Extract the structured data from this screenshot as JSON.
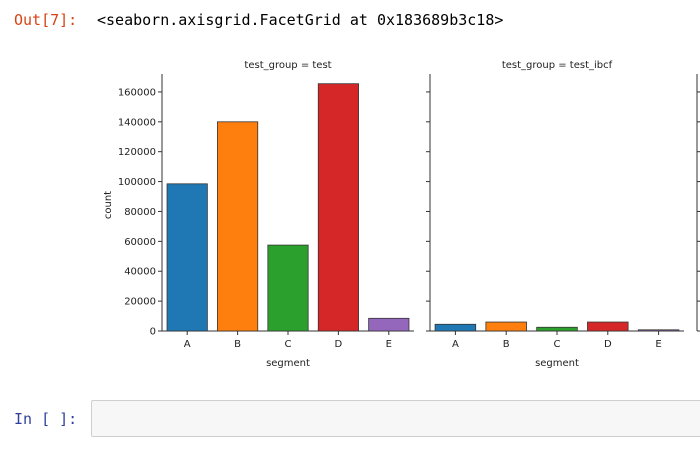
{
  "notebook": {
    "out_prompt": "Out[7]:",
    "out_text": "<seaborn.axisgrid.FacetGrid at 0x183689b3c18>",
    "in_prompt": "In [ ]:",
    "code_cell_value": ""
  },
  "chart_data": [
    {
      "type": "bar",
      "title": "test_group = test",
      "xlabel": "segment",
      "ylabel": "count",
      "categories": [
        "A",
        "B",
        "C",
        "D",
        "E"
      ],
      "values": [
        98500,
        140000,
        57500,
        165500,
        8500
      ],
      "colors": [
        "#1f77b4",
        "#ff7f0e",
        "#2ca02c",
        "#d62728",
        "#9467bd"
      ],
      "ylim": [
        0,
        172000
      ],
      "yticks": [
        0,
        20000,
        40000,
        60000,
        80000,
        100000,
        120000,
        140000,
        160000
      ],
      "ytick_labels": [
        "0",
        "20000",
        "40000",
        "60000",
        "80000",
        "100000",
        "120000",
        "140000",
        "160000"
      ],
      "grid": false
    },
    {
      "type": "bar",
      "title": "test_group = test_ibcf",
      "xlabel": "segment",
      "ylabel": "",
      "categories": [
        "A",
        "B",
        "C",
        "D",
        "E"
      ],
      "values": [
        4500,
        6000,
        2500,
        6000,
        800
      ],
      "colors": [
        "#1f77b4",
        "#ff7f0e",
        "#2ca02c",
        "#d62728",
        "#9467bd"
      ],
      "ylim": [
        0,
        172000
      ],
      "grid": false
    }
  ]
}
